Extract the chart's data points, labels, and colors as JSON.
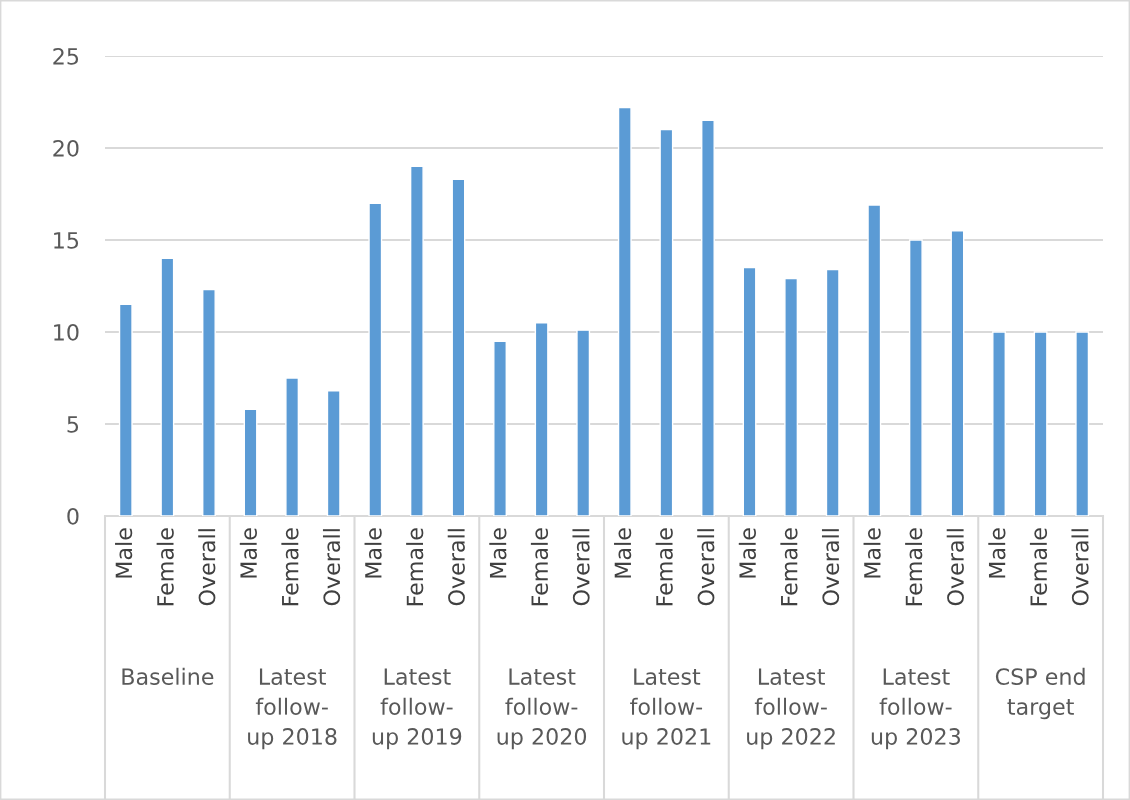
{
  "chart_data": {
    "type": "bar",
    "categories": [
      "Male",
      "Female",
      "Overall",
      "Male",
      "Female",
      "Overall",
      "Male",
      "Female",
      "Overall",
      "Male",
      "Female",
      "Overall",
      "Male",
      "Female",
      "Overall",
      "Male",
      "Female",
      "Overall",
      "Male",
      "Female",
      "Overall",
      "Male",
      "Female",
      "Overall"
    ],
    "values": [
      11.5,
      14.0,
      12.3,
      5.8,
      7.5,
      6.8,
      17.0,
      19.0,
      18.3,
      9.5,
      10.5,
      10.1,
      22.2,
      21.0,
      21.5,
      13.5,
      12.9,
      13.4,
      16.9,
      15.0,
      15.5,
      10.0,
      10.0,
      10.0
    ],
    "color": "#5b9bd5",
    "ylim": [
      0,
      25
    ],
    "yticks": [
      0,
      5,
      10,
      15,
      20,
      25
    ],
    "grid": "y",
    "annotations": [
      "Baseline",
      "Latest\nfollow-\nup 2018",
      "Latest\nfollow-\nup 2019",
      "Latest\nfollow-\nup 2020",
      "Latest\nfollow-\nup 2021",
      "Latest\nfollow-\nup 2022",
      "Latest\nfollow-\nup 2023",
      "CSP end\ntarget"
    ]
  }
}
